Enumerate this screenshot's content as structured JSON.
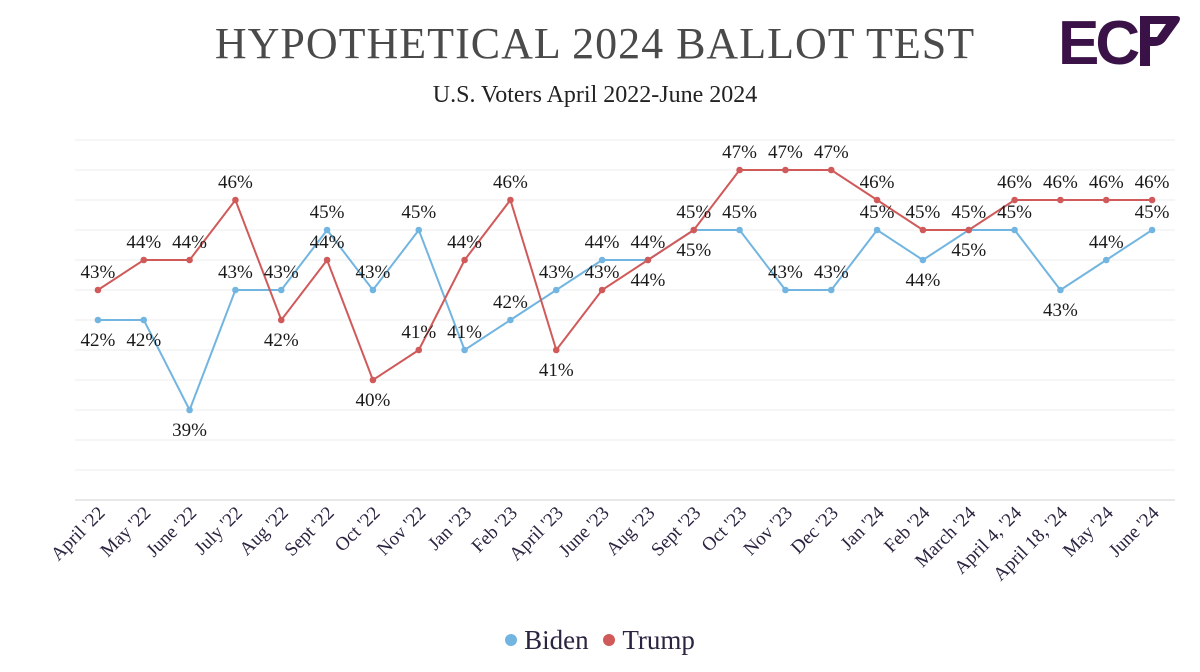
{
  "logo": {
    "text": "ECP",
    "color": "#3a1247"
  },
  "chart_data": {
    "type": "line",
    "title": "HYPOTHETICAL 2024 BALLOT TEST",
    "subtitle": "U.S. Voters April 2022-June 2024",
    "ylim": [
      36,
      48
    ],
    "grid": true,
    "legend_position": "bottom-center",
    "categories": [
      "April '22",
      "May '22",
      "June '22",
      "July '22",
      "Aug '22",
      "Sept '22",
      "Oct '22",
      "Nov '22",
      "Jan '23",
      "Feb '23",
      "April '23",
      "June '23",
      "Aug '23",
      "Sept '23",
      "Oct '23",
      "Nov '23",
      "Dec '23",
      "Jan '24",
      "Feb '24",
      "March '24",
      "April 4, '24",
      "April 18, '24",
      "May '24",
      "June '24"
    ],
    "series": [
      {
        "name": "Biden",
        "color": "#72b5e0",
        "values": [
          42,
          42,
          39,
          43,
          43,
          45,
          43,
          45,
          41,
          42,
          43,
          44,
          44,
          45,
          45,
          43,
          43,
          45,
          44,
          45,
          45,
          43,
          44,
          45
        ],
        "labels": [
          "42%",
          "42%",
          "39%",
          "43%",
          "43%",
          "45%",
          "43%",
          "45%",
          "41%",
          "42%",
          "43%",
          "44%",
          "44%",
          "45%",
          "45%",
          "43%",
          "43%",
          "45%",
          "44%",
          "45%",
          "45%",
          "43%",
          "44%",
          "45%"
        ]
      },
      {
        "name": "Trump",
        "color": "#d05a5a",
        "values": [
          43,
          44,
          44,
          46,
          42,
          44,
          40,
          41,
          44,
          46,
          41,
          43,
          44,
          45,
          47,
          47,
          47,
          46,
          45,
          45,
          46,
          46,
          46,
          46
        ],
        "labels": [
          "43%",
          "44%",
          "44%",
          "46%",
          "42%",
          "44%",
          "40%",
          "41%",
          "44%",
          "46%",
          "41%",
          "43%",
          "44%",
          "45%",
          "47%",
          "47%",
          "47%",
          "46%",
          "45%",
          "45%",
          "46%",
          "46%",
          "46%",
          "46%"
        ]
      }
    ]
  }
}
